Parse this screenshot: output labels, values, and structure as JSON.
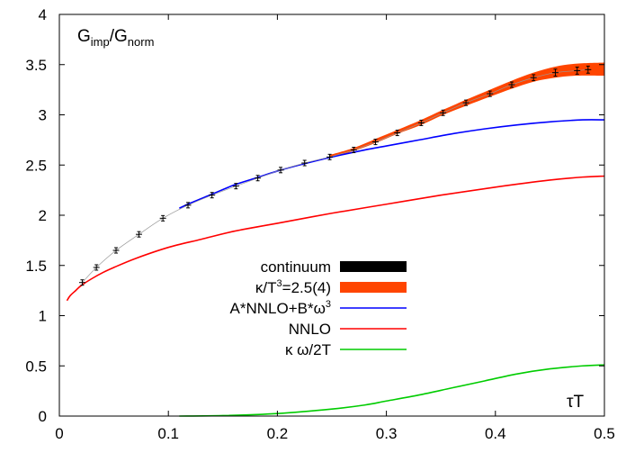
{
  "chart_data": {
    "type": "line",
    "title": "",
    "ylabel_parts": {
      "main1": "G",
      "sub1": "imp",
      "slash": "/G",
      "sub2": "norm"
    },
    "xlabel": "τT",
    "xlim": [
      0,
      0.5
    ],
    "ylim": [
      0,
      4
    ],
    "xticks": [
      "0",
      "0.1",
      "0.2",
      "0.3",
      "0.4",
      "0.5"
    ],
    "xtick_values": [
      0,
      0.1,
      0.2,
      0.3,
      0.4,
      0.5
    ],
    "yticks": [
      "0",
      "0.5",
      "1",
      "1.5",
      "2",
      "2.5",
      "3",
      "3.5",
      "4"
    ],
    "ytick_values": [
      0,
      0.5,
      1,
      1.5,
      2,
      2.5,
      3,
      3.5,
      4
    ],
    "grid": false,
    "legend_position": "center-right",
    "legend": [
      {
        "label": "continuum",
        "color": "#000000",
        "style": "thick-bar"
      },
      {
        "label_parts": [
          "κ/T",
          "3",
          "=2.5(4)"
        ],
        "label": "κ/T3=2.5(4)",
        "color": "#ff4500",
        "style": "thick-bar"
      },
      {
        "label_parts": [
          "A*NNLO+B*ω",
          "3",
          ""
        ],
        "label": "A*NNLO+B*ω3",
        "color": "#0000ff",
        "style": "line"
      },
      {
        "label": "NNLO",
        "color": "#ff0000",
        "style": "line"
      },
      {
        "label": "κ ω/2T",
        "color": "#00cc00",
        "style": "line"
      }
    ],
    "series": [
      {
        "name": "continuum",
        "kind": "points",
        "color": "#000000",
        "x": [
          0.021,
          0.034,
          0.052,
          0.073,
          0.095,
          0.118,
          0.14,
          0.162,
          0.182,
          0.203,
          0.225,
          0.248,
          0.27,
          0.29,
          0.31,
          0.332,
          0.352,
          0.373,
          0.395,
          0.415,
          0.435,
          0.455,
          0.475,
          0.485
        ],
        "y": [
          1.33,
          1.48,
          1.65,
          1.81,
          1.97,
          2.1,
          2.2,
          2.29,
          2.37,
          2.45,
          2.52,
          2.58,
          2.65,
          2.73,
          2.82,
          2.92,
          3.02,
          3.12,
          3.21,
          3.3,
          3.37,
          3.42,
          3.44,
          3.45
        ],
        "yerr": [
          0.01,
          0.01,
          0.01,
          0.01,
          0.01,
          0.01,
          0.01,
          0.01,
          0.01,
          0.01,
          0.01,
          0.01,
          0.01,
          0.01,
          0.01,
          0.01,
          0.015,
          0.02,
          0.02,
          0.025,
          0.03,
          0.035,
          0.035,
          0.035
        ]
      },
      {
        "name": "κ/T3=2.5(4)",
        "kind": "band",
        "color": "#ff4500",
        "x": [
          0.248,
          0.27,
          0.29,
          0.31,
          0.332,
          0.352,
          0.373,
          0.395,
          0.415,
          0.435,
          0.455,
          0.475,
          0.5
        ],
        "y_low": [
          2.57,
          2.64,
          2.72,
          2.81,
          2.9,
          3.0,
          3.09,
          3.18,
          3.26,
          3.33,
          3.37,
          3.39,
          3.39
        ],
        "y_high": [
          2.6,
          2.67,
          2.76,
          2.85,
          2.95,
          3.05,
          3.15,
          3.25,
          3.34,
          3.42,
          3.48,
          3.51,
          3.52
        ]
      },
      {
        "name": "A*NNLO+B*ω3",
        "kind": "line",
        "color": "#0000ff",
        "x": [
          0.11,
          0.12,
          0.14,
          0.16,
          0.18,
          0.2,
          0.22,
          0.25,
          0.28,
          0.3,
          0.33,
          0.36,
          0.39,
          0.42,
          0.45,
          0.48,
          0.5
        ],
        "y": [
          2.07,
          2.12,
          2.21,
          2.3,
          2.37,
          2.44,
          2.5,
          2.58,
          2.65,
          2.69,
          2.75,
          2.81,
          2.86,
          2.9,
          2.93,
          2.95,
          2.95
        ]
      },
      {
        "name": "NNLO",
        "kind": "line",
        "color": "#ff0000",
        "x": [
          0.007,
          0.01,
          0.015,
          0.02,
          0.03,
          0.04,
          0.05,
          0.07,
          0.1,
          0.13,
          0.16,
          0.2,
          0.25,
          0.3,
          0.35,
          0.4,
          0.45,
          0.48,
          0.5
        ],
        "y": [
          1.15,
          1.2,
          1.25,
          1.3,
          1.37,
          1.43,
          1.48,
          1.57,
          1.68,
          1.76,
          1.84,
          1.92,
          2.02,
          2.11,
          2.2,
          2.28,
          2.35,
          2.38,
          2.39
        ]
      },
      {
        "name": "κ ω/2T",
        "kind": "line",
        "color": "#00cc00",
        "x": [
          0.11,
          0.15,
          0.2,
          0.25,
          0.28,
          0.3,
          0.33,
          0.36,
          0.39,
          0.42,
          0.45,
          0.48,
          0.5
        ],
        "y": [
          0.0,
          0.005,
          0.025,
          0.07,
          0.11,
          0.15,
          0.21,
          0.28,
          0.35,
          0.42,
          0.47,
          0.5,
          0.51
        ]
      }
    ]
  },
  "colors": {
    "axis": "#000000",
    "connector": "#999999"
  }
}
